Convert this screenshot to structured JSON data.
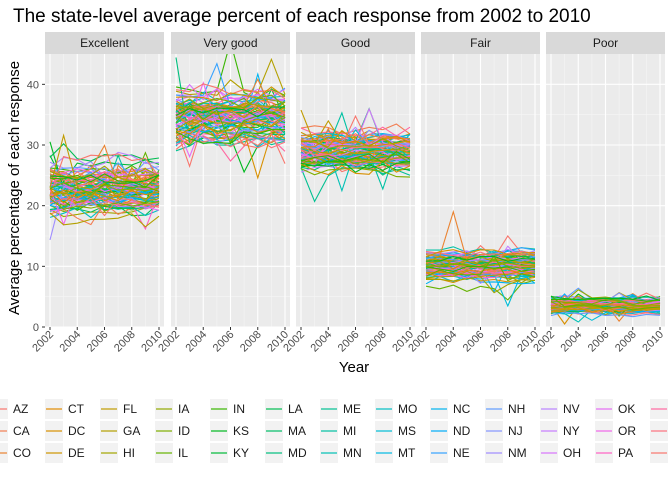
{
  "chart_data": {
    "type": "line",
    "title": "The state-level average percent of each response from 2002 to 2010",
    "xlabel": "Year",
    "ylabel": "Average percentage of each response",
    "xlim": [
      2002,
      2010
    ],
    "ylim": [
      0,
      45
    ],
    "x_ticks": [
      2002,
      2004,
      2006,
      2008,
      2010
    ],
    "y_ticks": [
      0,
      10,
      20,
      30,
      40
    ],
    "grid": true,
    "legend_position": "bottom",
    "facets": [
      {
        "name": "Excellent",
        "center": 22.5,
        "spread": 3.2
      },
      {
        "name": "Very good",
        "center": 34.5,
        "spread": 3.5
      },
      {
        "name": "Good",
        "center": 29.0,
        "spread": 2.5
      },
      {
        "name": "Fair",
        "center": 10.0,
        "spread": 2.0
      },
      {
        "name": "Poor",
        "center": 3.5,
        "spread": 1.2
      }
    ],
    "series": [
      {
        "name": "AZ",
        "color": "#F8766D"
      },
      {
        "name": "CA",
        "color": "#F27D52"
      },
      {
        "name": "CO",
        "color": "#EA8331"
      },
      {
        "name": "CT",
        "color": "#E18A00"
      },
      {
        "name": "DC",
        "color": "#D89000"
      },
      {
        "name": "DE",
        "color": "#CD9600"
      },
      {
        "name": "FL",
        "color": "#C09B00"
      },
      {
        "name": "GA",
        "color": "#B3A000"
      },
      {
        "name": "HI",
        "color": "#A3A500"
      },
      {
        "name": "IA",
        "color": "#93AA00"
      },
      {
        "name": "ID",
        "color": "#7FAE00"
      },
      {
        "name": "IL",
        "color": "#65B200"
      },
      {
        "name": "IN",
        "color": "#39B600"
      },
      {
        "name": "KS",
        "color": "#00B81F"
      },
      {
        "name": "KY",
        "color": "#00BA38"
      },
      {
        "name": "LA",
        "color": "#00BC51"
      },
      {
        "name": "MA",
        "color": "#00BE67"
      },
      {
        "name": "MD",
        "color": "#00BF7D"
      },
      {
        "name": "ME",
        "color": "#00C091"
      },
      {
        "name": "MI",
        "color": "#00C1A3"
      },
      {
        "name": "MN",
        "color": "#00C0B5"
      },
      {
        "name": "MO",
        "color": "#00BFC4"
      },
      {
        "name": "MS",
        "color": "#00BCD6"
      },
      {
        "name": "MT",
        "color": "#00B9E3"
      },
      {
        "name": "NC",
        "color": "#00B4F0"
      },
      {
        "name": "ND",
        "color": "#00ADFA"
      },
      {
        "name": "NE",
        "color": "#35A2FF"
      },
      {
        "name": "NH",
        "color": "#619CFF"
      },
      {
        "name": "NJ",
        "color": "#8494FF"
      },
      {
        "name": "NM",
        "color": "#9F8CFF"
      },
      {
        "name": "NV",
        "color": "#B983FF"
      },
      {
        "name": "NY",
        "color": "#C77CFF"
      },
      {
        "name": "OH",
        "color": "#D774FD"
      },
      {
        "name": "OK",
        "color": "#E66CF4"
      },
      {
        "name": "OR",
        "color": "#F166EA"
      },
      {
        "name": "PA",
        "color": "#FF61C3"
      },
      {
        "name": "",
        "color": "#FF68A1"
      },
      {
        "name": "",
        "color": "#FC717F"
      },
      {
        "name": "",
        "color": "#F8766D"
      }
    ]
  }
}
